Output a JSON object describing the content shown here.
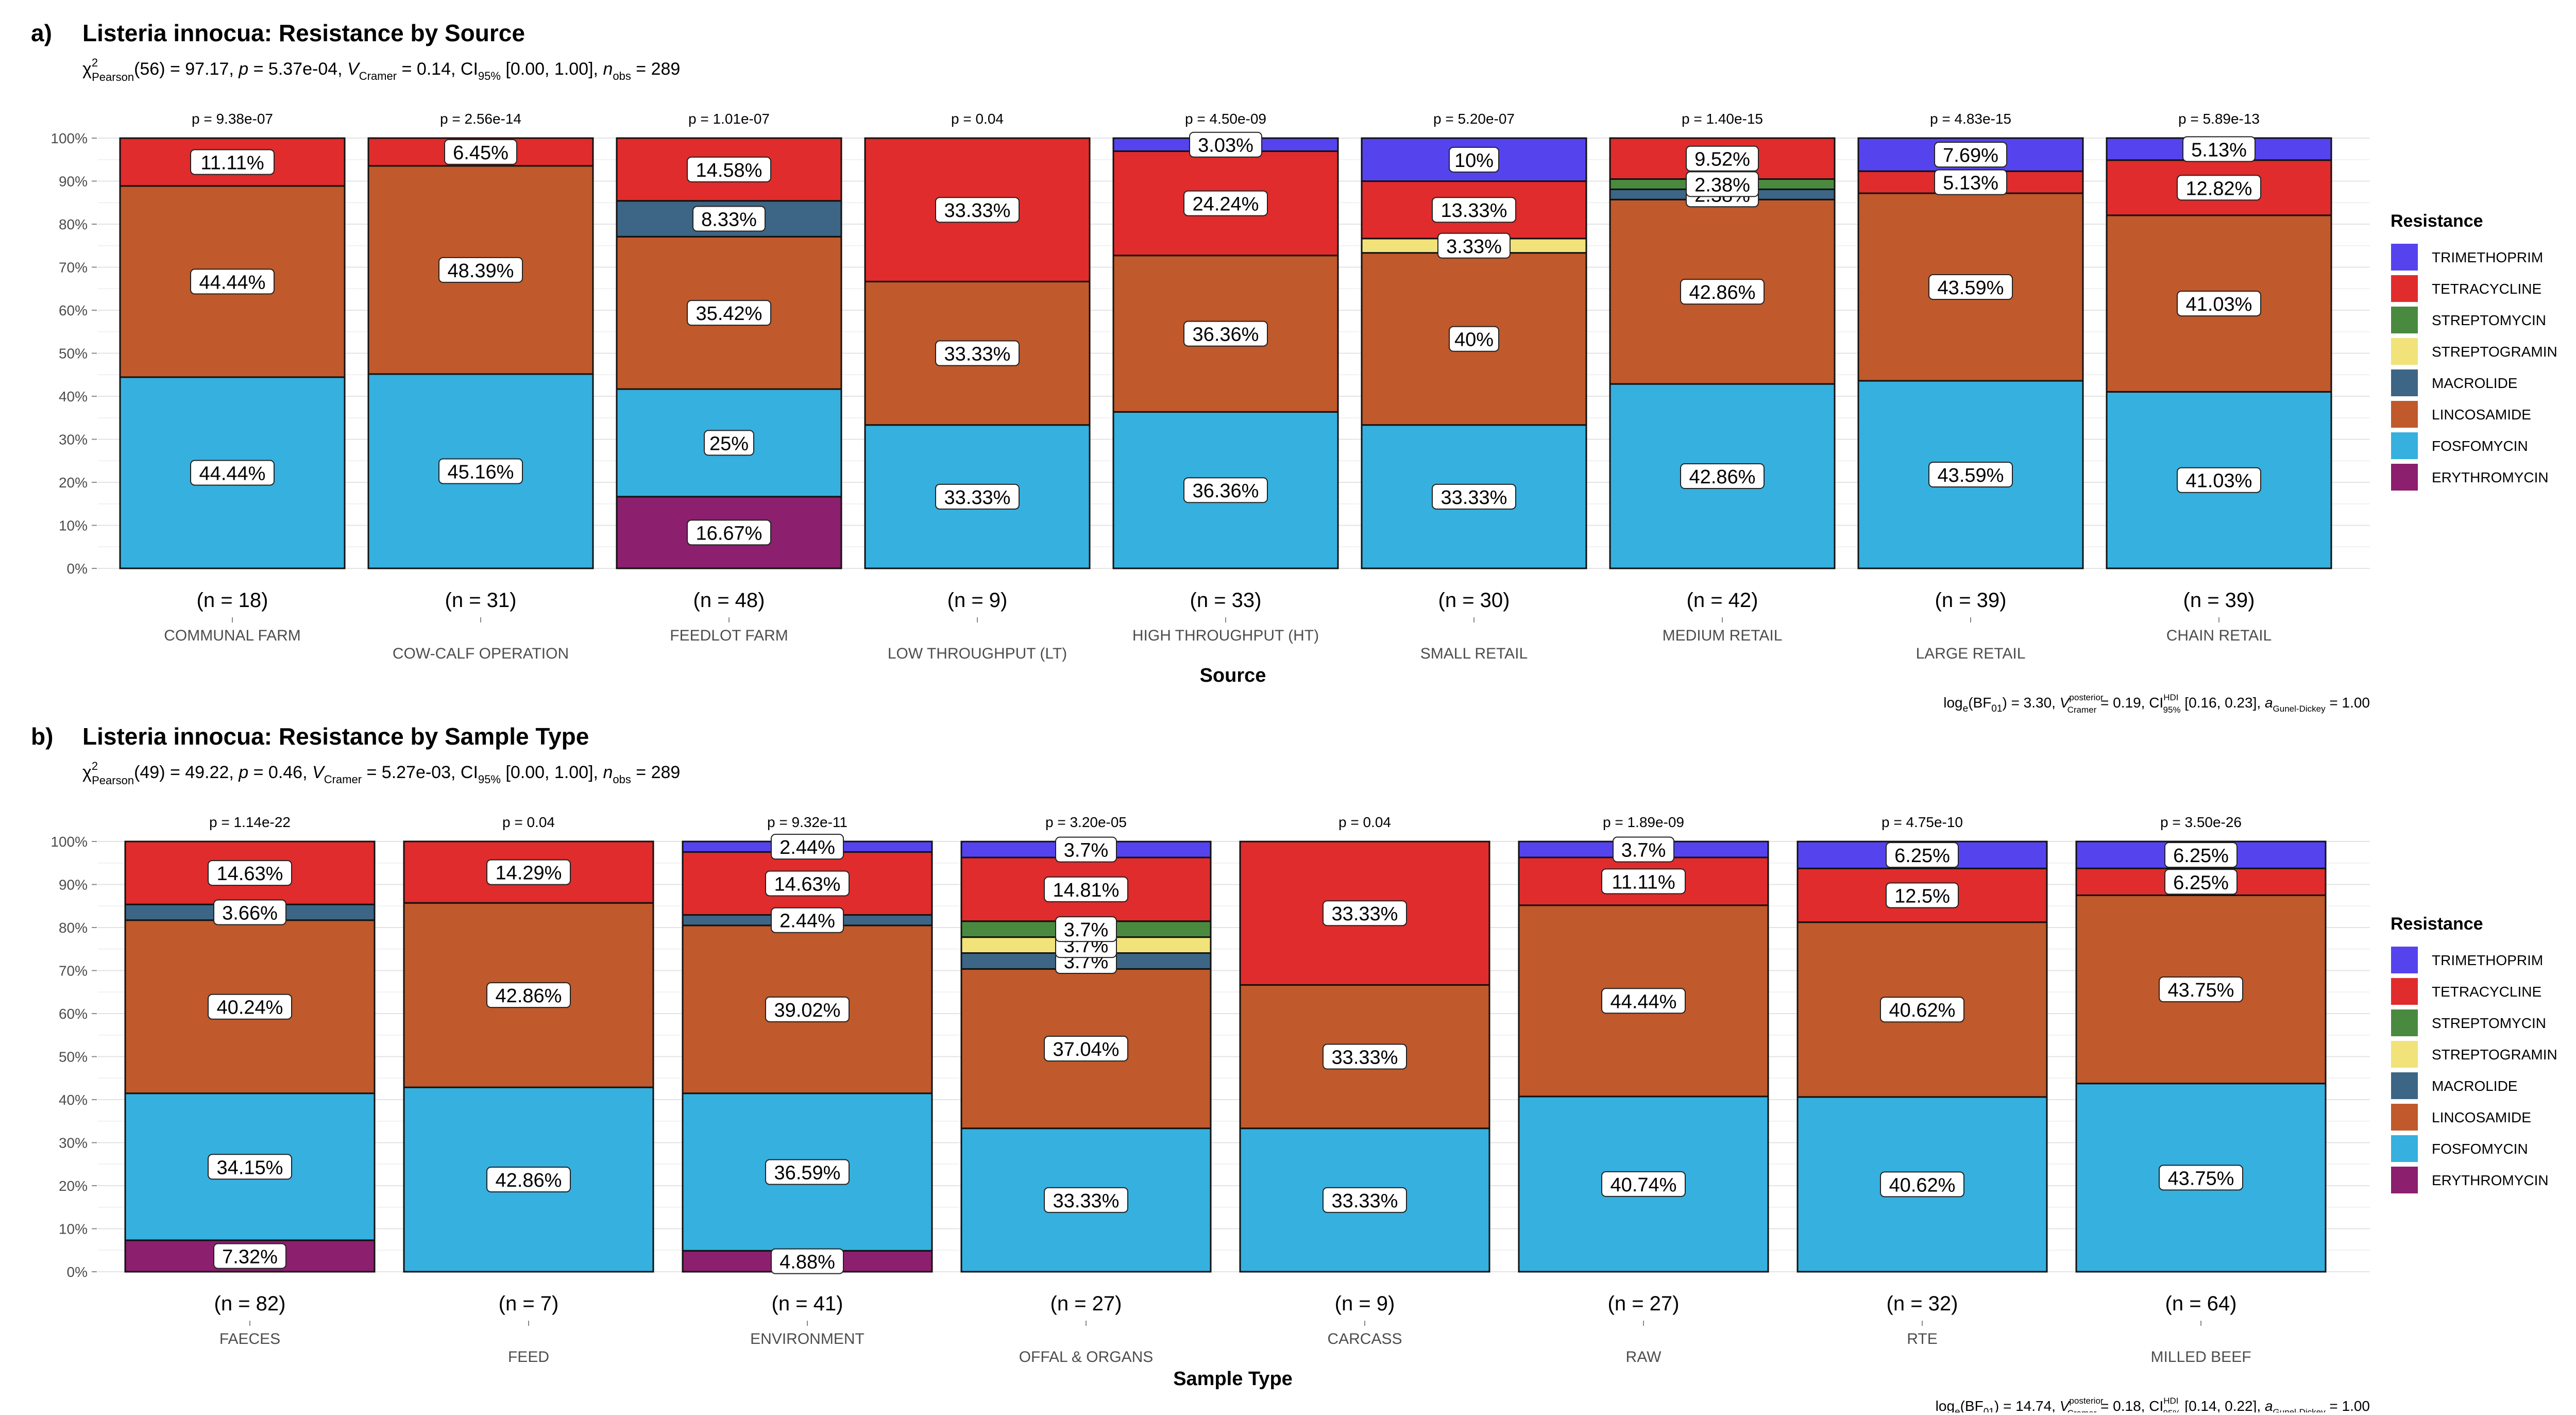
{
  "legend": {
    "title": "Resistance",
    "items": [
      {
        "name": "TRIMETHOPRIM",
        "color": "#5544ee"
      },
      {
        "name": "TETRACYCLINE",
        "color": "#e02c2c"
      },
      {
        "name": "STREPTOMYCIN",
        "color": "#4a8a40"
      },
      {
        "name": "STREPTOGRAMIN",
        "color": "#f2e27a"
      },
      {
        "name": "MACROLIDE",
        "color": "#3d6585"
      },
      {
        "name": "LINCOSAMIDE",
        "color": "#c0592b"
      },
      {
        "name": "FOSFOMYCIN",
        "color": "#36b0de"
      },
      {
        "name": "ERYTHROMYCIN",
        "color": "#8c1f6e"
      }
    ]
  },
  "chart_data": [
    {
      "type": "bar",
      "stacked": true,
      "panel_label": "a)",
      "title": "Listeria innocua: Resistance by Source",
      "stats": {
        "chi": "χ",
        "chi_sup": "2",
        "chi_sub": "Pearson",
        "p1": "(56) = 97.17, ",
        "p_sym": "p",
        "p2": " = 5.37e-04, ",
        "v_hat": "V",
        "v_sub": "Cramer",
        "p3": " = 0.14, CI",
        "ci_sub": "95%",
        "p4": " [0.00, 1.00], ",
        "n_sym": "n",
        "n_sub": "obs",
        "p5": " = 289"
      },
      "bayes": {
        "t1": "log",
        "t1_sub": "e",
        "t2": "(BF",
        "t2_sub": "01",
        "t3": ") = 3.30, ",
        "v_sym": "V",
        "v_sup": "posterior",
        "v_sub": "Cramer",
        "t4": " = 0.19, CI",
        "ci_sup": "HDI",
        "ci_sub": "95%",
        "t5": " [0.16, 0.23], ",
        "a_sym": "a",
        "a_sub": "Gunel-Dickey",
        "t6": " = 1.00"
      },
      "xlabel": "Source",
      "ylim": [
        0,
        100
      ],
      "y_ticks": [
        "0%",
        "10%",
        "20%",
        "30%",
        "40%",
        "50%",
        "60%",
        "70%",
        "80%",
        "90%",
        "100%"
      ],
      "categories": [
        "COMMUNAL FARM",
        "COW-CALF OPERATION",
        "FEEDLOT FARM",
        "LOW THROUGHPUT (LT)",
        "HIGH THROUGHPUT (HT)",
        "SMALL RETAIL",
        "MEDIUM RETAIL",
        "LARGE RETAIL",
        "CHAIN RETAIL"
      ],
      "n_labels": [
        "(n = 18)",
        "(n = 31)",
        "(n = 48)",
        "(n = 9)",
        "(n = 33)",
        "(n = 30)",
        "(n = 42)",
        "(n = 39)",
        "(n = 39)"
      ],
      "p_values": [
        "p = 9.38e-07",
        "p = 2.56e-14",
        "p = 1.01e-07",
        "p = 0.04",
        "p = 4.50e-09",
        "p = 5.20e-07",
        "p = 1.40e-15",
        "p = 4.83e-15",
        "p = 5.89e-13"
      ],
      "series": [
        {
          "name": "ERYTHROMYCIN",
          "values": [
            0,
            0,
            16.67,
            0,
            0,
            0,
            0,
            0,
            0
          ],
          "labels": [
            "",
            "",
            "16.67%",
            "",
            "",
            "",
            "",
            "",
            ""
          ]
        },
        {
          "name": "FOSFOMYCIN",
          "values": [
            44.44,
            45.16,
            25,
            33.33,
            36.36,
            33.33,
            42.86,
            43.59,
            41.03
          ],
          "labels": [
            "44.44%",
            "45.16%",
            "25%",
            "33.33%",
            "36.36%",
            "33.33%",
            "42.86%",
            "43.59%",
            "41.03%"
          ]
        },
        {
          "name": "LINCOSAMIDE",
          "values": [
            44.44,
            48.39,
            35.42,
            33.33,
            36.36,
            40,
            42.86,
            43.59,
            41.03
          ],
          "labels": [
            "44.44%",
            "48.39%",
            "35.42%",
            "33.33%",
            "36.36%",
            "40%",
            "42.86%",
            "43.59%",
            "41.03%"
          ]
        },
        {
          "name": "MACROLIDE",
          "values": [
            0,
            0,
            8.33,
            0,
            0,
            0,
            2.38,
            0,
            0
          ],
          "labels": [
            "",
            "",
            "8.33%",
            "",
            "",
            "",
            "2.38%",
            "",
            ""
          ]
        },
        {
          "name": "STREPTOGRAMIN",
          "values": [
            0,
            0,
            0,
            0,
            0,
            3.33,
            0,
            0,
            0
          ],
          "labels": [
            "",
            "",
            "",
            "",
            "",
            "3.33%",
            "",
            "",
            ""
          ]
        },
        {
          "name": "STREPTOMYCIN",
          "values": [
            0,
            0,
            0,
            0,
            0,
            0,
            2.38,
            0,
            0
          ],
          "labels": [
            "",
            "",
            "",
            "",
            "",
            "",
            "2.38%",
            "",
            ""
          ]
        },
        {
          "name": "TETRACYCLINE",
          "values": [
            11.11,
            6.45,
            14.58,
            33.33,
            24.24,
            13.33,
            9.52,
            5.13,
            12.82
          ],
          "labels": [
            "11.11%",
            "6.45%",
            "14.58%",
            "33.33%",
            "24.24%",
            "13.33%",
            "9.52%",
            "5.13%",
            "12.82%"
          ]
        },
        {
          "name": "TRIMETHOPRIM",
          "values": [
            0,
            0,
            0,
            0,
            3.03,
            10,
            0,
            7.69,
            5.13
          ],
          "labels": [
            "",
            "",
            "",
            "",
            "3.03%",
            "10%",
            "",
            "7.69%",
            "5.13%"
          ]
        }
      ]
    },
    {
      "type": "bar",
      "stacked": true,
      "panel_label": "b)",
      "title": "Listeria innocua: Resistance by Sample Type",
      "stats": {
        "chi": "χ",
        "chi_sup": "2",
        "chi_sub": "Pearson",
        "p1": "(49) = 49.22, ",
        "p_sym": "p",
        "p2": " = 0.46, ",
        "v_hat": "V",
        "v_sub": "Cramer",
        "p3": " = 5.27e-03, CI",
        "ci_sub": "95%",
        "p4": " [0.00, 1.00], ",
        "n_sym": "n",
        "n_sub": "obs",
        "p5": " = 289"
      },
      "bayes": {
        "t1": "log",
        "t1_sub": "e",
        "t2": "(BF",
        "t2_sub": "01",
        "t3": ") = 14.74, ",
        "v_sym": "V",
        "v_sup": "posterior",
        "v_sub": "Cramer",
        "t4": " = 0.18, CI",
        "ci_sup": "HDI",
        "ci_sub": "95%",
        "t5": " [0.14, 0.22], ",
        "a_sym": "a",
        "a_sub": "Gunel-Dickey",
        "t6": " = 1.00"
      },
      "xlabel": "Sample Type",
      "ylim": [
        0,
        100
      ],
      "y_ticks": [
        "0%",
        "10%",
        "20%",
        "30%",
        "40%",
        "50%",
        "60%",
        "70%",
        "80%",
        "90%",
        "100%"
      ],
      "categories": [
        "FAECES",
        "FEED",
        "ENVIRONMENT",
        "OFFAL & ORGANS",
        "CARCASS",
        "RAW",
        "RTE",
        "MILLED BEEF"
      ],
      "n_labels": [
        "(n = 82)",
        "(n = 7)",
        "(n = 41)",
        "(n = 27)",
        "(n = 9)",
        "(n = 27)",
        "(n = 32)",
        "(n = 64)"
      ],
      "p_values": [
        "p = 1.14e-22",
        "p = 0.04",
        "p = 9.32e-11",
        "p = 3.20e-05",
        "p = 0.04",
        "p = 1.89e-09",
        "p = 4.75e-10",
        "p = 3.50e-26"
      ],
      "series": [
        {
          "name": "ERYTHROMYCIN",
          "values": [
            7.32,
            0,
            4.88,
            0,
            0,
            0,
            0,
            0
          ],
          "labels": [
            "7.32%",
            "",
            "4.88%",
            "",
            "",
            "",
            "",
            ""
          ]
        },
        {
          "name": "FOSFOMYCIN",
          "values": [
            34.15,
            42.86,
            36.59,
            33.33,
            33.33,
            40.74,
            40.62,
            43.75
          ],
          "labels": [
            "34.15%",
            "42.86%",
            "36.59%",
            "33.33%",
            "33.33%",
            "40.74%",
            "40.62%",
            "43.75%"
          ]
        },
        {
          "name": "LINCOSAMIDE",
          "values": [
            40.24,
            42.86,
            39.02,
            37.04,
            33.33,
            44.44,
            40.62,
            43.75
          ],
          "labels": [
            "40.24%",
            "42.86%",
            "39.02%",
            "37.04%",
            "33.33%",
            "44.44%",
            "40.62%",
            "43.75%"
          ]
        },
        {
          "name": "MACROLIDE",
          "values": [
            3.66,
            0,
            2.44,
            3.7,
            0,
            0,
            0,
            0
          ],
          "labels": [
            "3.66%",
            "",
            "2.44%",
            "3.7%",
            "",
            "",
            "",
            ""
          ]
        },
        {
          "name": "STREPTOGRAMIN",
          "values": [
            0,
            0,
            0,
            3.7,
            0,
            0,
            0,
            0
          ],
          "labels": [
            "",
            "",
            "",
            "3.7%",
            "",
            "",
            "",
            ""
          ]
        },
        {
          "name": "STREPTOMYCIN",
          "values": [
            0,
            0,
            0,
            3.7,
            0,
            0,
            0,
            0
          ],
          "labels": [
            "",
            "",
            "",
            "3.7%",
            "",
            "",
            "",
            ""
          ]
        },
        {
          "name": "TETRACYCLINE",
          "values": [
            14.63,
            14.29,
            14.63,
            14.81,
            33.33,
            11.11,
            12.5,
            6.25
          ],
          "labels": [
            "14.63%",
            "14.29%",
            "14.63%",
            "14.81%",
            "33.33%",
            "11.11%",
            "12.5%",
            "6.25%"
          ]
        },
        {
          "name": "TRIMETHOPRIM",
          "values": [
            0,
            0,
            2.44,
            3.7,
            0,
            3.7,
            6.25,
            6.25
          ],
          "labels": [
            "",
            "",
            "2.44%",
            "3.7%",
            "",
            "3.7%",
            "6.25%",
            "6.25%"
          ]
        }
      ]
    }
  ]
}
